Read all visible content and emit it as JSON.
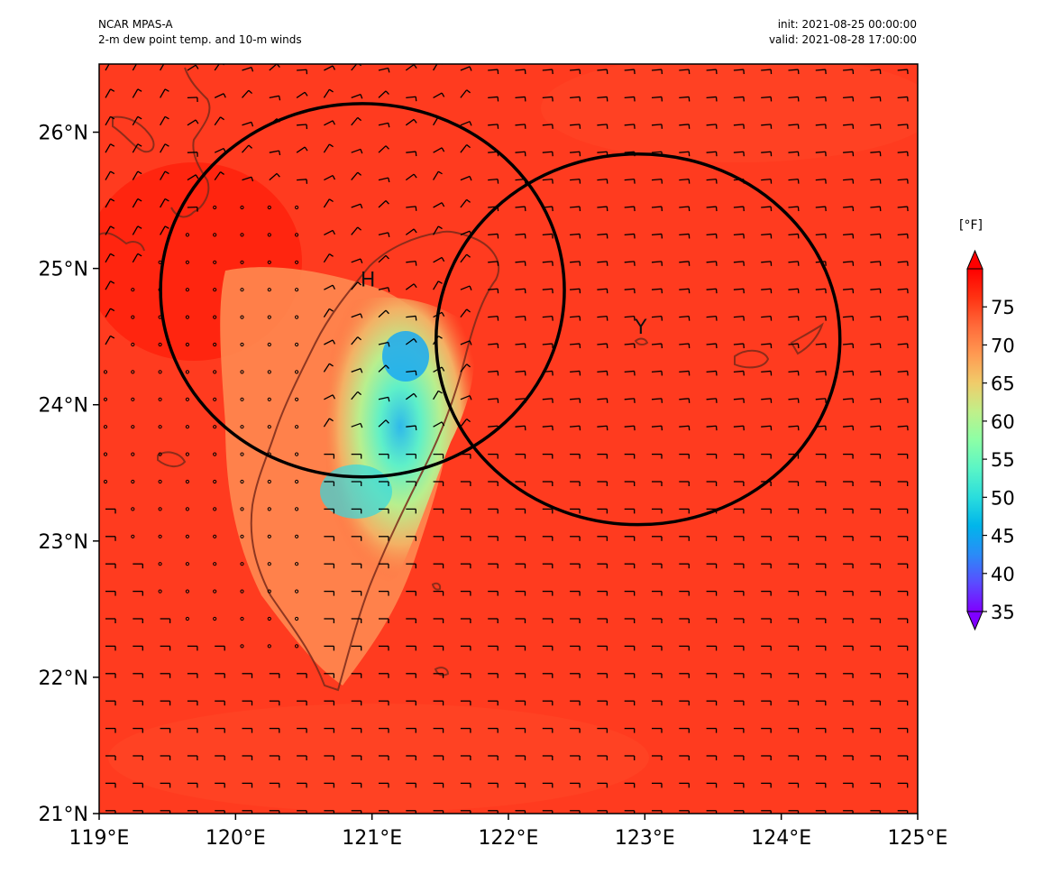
{
  "header": {
    "model": "NCAR MPAS-A",
    "field": "2-m dew point temp. and 10-m winds",
    "init": "init: 2021-08-25 00:00:00",
    "valid": "valid: 2021-08-28 17:00:00"
  },
  "map": {
    "lon_range": [
      119,
      125
    ],
    "lat_range": [
      21,
      26.5
    ],
    "lon_ticks": [
      "119°E",
      "120°E",
      "121°E",
      "122°E",
      "123°E",
      "124°E",
      "125°E"
    ],
    "lat_ticks": [
      "21°N",
      "22°N",
      "23°N",
      "24°N",
      "25°N",
      "26°N"
    ],
    "background_color": "#ff3b1f",
    "markers": [
      {
        "label": "H",
        "lon": 120.97,
        "lat": 24.87
      },
      {
        "label": "Y",
        "lon": 122.97,
        "lat": 24.52
      }
    ],
    "circles": [
      {
        "center_lon": 120.93,
        "center_lat": 24.84,
        "rx_deg": 1.48,
        "ry_deg": 1.37
      },
      {
        "center_lon": 122.95,
        "center_lat": 24.48,
        "rx_deg": 1.48,
        "ry_deg": 1.36
      }
    ]
  },
  "colorbar": {
    "unit": "[°F]",
    "min": 35,
    "max": 80,
    "ticks": [
      "35",
      "40",
      "45",
      "50",
      "55",
      "60",
      "65",
      "70",
      "75"
    ],
    "colors": [
      "#7f00ff",
      "#5a4cff",
      "#2a8cf7",
      "#00b5eb",
      "#2adddd",
      "#5af5c6",
      "#8cffa6",
      "#c0f08a",
      "#f0cc6a",
      "#ff9a52",
      "#ff6a3a",
      "#ff3212",
      "#ff0000"
    ]
  }
}
